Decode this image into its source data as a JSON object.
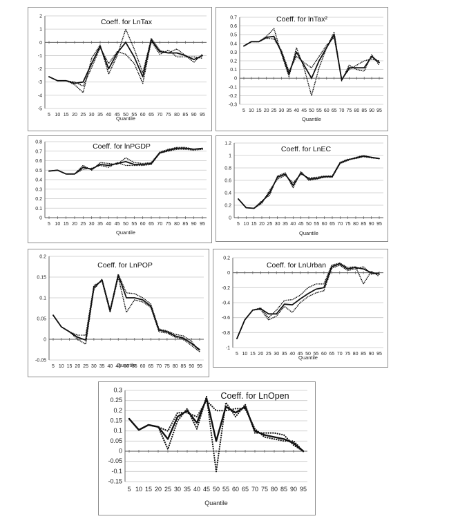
{
  "figure": {
    "panels": [
      {
        "id": "lntax",
        "title": "Coeff. for LnTax",
        "xlabel": "Quantile",
        "chart_data": {
          "type": "line",
          "x": [
            5,
            10,
            15,
            20,
            25,
            30,
            35,
            40,
            45,
            50,
            55,
            60,
            65,
            70,
            75,
            80,
            85,
            90,
            95
          ],
          "x_ticks": [
            "5",
            "10",
            "15",
            "20",
            "25",
            "30",
            "35",
            "40",
            "45",
            "50",
            "55",
            "60",
            "65",
            "70",
            "75",
            "80",
            "85",
            "90",
            "95"
          ],
          "ylim": [
            -5,
            2
          ],
          "y_ticks": [
            -5,
            -4,
            -3,
            -2,
            -1,
            0,
            1,
            2
          ],
          "series": [
            {
              "style": "solid",
              "values": [
                -2.6,
                -2.9,
                -2.9,
                -3.1,
                -3.0,
                -1.6,
                -0.3,
                -2.0,
                -0.8,
                0.0,
                -1.1,
                -2.6,
                0.2,
                -0.7,
                -0.8,
                -0.8,
                -1.0,
                -1.3,
                -1.0
              ]
            },
            {
              "style": "dotted",
              "values": [
                -2.6,
                -2.9,
                -2.9,
                -3.2,
                -3.8,
                -1.2,
                -0.2,
                -2.4,
                -1.0,
                1.0,
                -0.5,
                -2.3,
                0.3,
                -0.6,
                -0.8,
                -0.5,
                -1.0,
                -1.5,
                -0.9
              ]
            },
            {
              "style": "dotted",
              "values": [
                -2.6,
                -2.9,
                -2.9,
                -3.0,
                -3.3,
                -1.9,
                -0.4,
                -1.6,
                -0.7,
                -0.9,
                -1.6,
                -3.1,
                0.1,
                -0.9,
                -0.6,
                -1.1,
                -1.1,
                -1.1,
                -1.2
              ]
            }
          ]
        }
      },
      {
        "id": "lntax2",
        "title": "Coeff. for lnTax²",
        "xlabel": "Quantile",
        "chart_data": {
          "type": "line",
          "x": [
            5,
            10,
            15,
            20,
            25,
            30,
            35,
            40,
            45,
            50,
            55,
            60,
            65,
            70,
            75,
            80,
            85,
            90,
            95
          ],
          "x_ticks": [
            "5",
            "10",
            "15",
            "20",
            "25",
            "30",
            "35",
            "40",
            "45",
            "50",
            "55",
            "60",
            "65",
            "70",
            "75",
            "80",
            "85",
            "90",
            "95"
          ],
          "ylim": [
            -0.3,
            0.7
          ],
          "y_ticks": [
            -0.3,
            -0.2,
            -0.1,
            0,
            0.1,
            0.2,
            0.3,
            0.4,
            0.5,
            0.6,
            0.7
          ],
          "series": [
            {
              "style": "solid",
              "values": [
                0.37,
                0.42,
                0.42,
                0.47,
                0.48,
                0.3,
                0.05,
                0.3,
                0.15,
                0.0,
                0.2,
                0.35,
                0.5,
                -0.02,
                0.12,
                0.12,
                0.12,
                0.25,
                0.18
              ]
            },
            {
              "style": "dotted",
              "values": [
                0.37,
                0.42,
                0.42,
                0.48,
                0.57,
                0.28,
                0.02,
                0.35,
                0.12,
                -0.2,
                0.12,
                0.35,
                0.53,
                -0.03,
                0.15,
                0.1,
                0.08,
                0.27,
                0.15
              ]
            },
            {
              "style": "dotted",
              "values": [
                0.37,
                0.42,
                0.42,
                0.46,
                0.45,
                0.32,
                0.08,
                0.25,
                0.18,
                0.12,
                0.25,
                0.38,
                0.47,
                -0.01,
                0.1,
                0.15,
                0.2,
                0.22,
                0.2
              ]
            }
          ]
        }
      },
      {
        "id": "lnpgdp",
        "title": "Coeff. for lnPGDP",
        "xlabel": "Quantile",
        "chart_data": {
          "type": "line",
          "x": [
            5,
            10,
            15,
            20,
            25,
            30,
            35,
            40,
            45,
            50,
            55,
            60,
            65,
            70,
            75,
            80,
            85,
            90,
            95
          ],
          "x_ticks": [
            "5",
            "10",
            "15",
            "20",
            "25",
            "30",
            "35",
            "40",
            "45",
            "50",
            "55",
            "60",
            "65",
            "70",
            "75",
            "80",
            "85",
            "90",
            "95"
          ],
          "ylim": [
            0,
            0.8
          ],
          "y_ticks": [
            0,
            0.1,
            0.2,
            0.3,
            0.4,
            0.5,
            0.6,
            0.7,
            0.8
          ],
          "series": [
            {
              "style": "solid",
              "values": [
                0.49,
                0.5,
                0.46,
                0.46,
                0.53,
                0.51,
                0.56,
                0.55,
                0.57,
                0.59,
                0.56,
                0.56,
                0.57,
                0.68,
                0.71,
                0.73,
                0.73,
                0.72,
                0.73
              ]
            },
            {
              "style": "dotted",
              "values": [
                0.49,
                0.5,
                0.46,
                0.46,
                0.55,
                0.5,
                0.58,
                0.57,
                0.56,
                0.63,
                0.58,
                0.57,
                0.58,
                0.69,
                0.72,
                0.74,
                0.74,
                0.72,
                0.73
              ]
            },
            {
              "style": "dotted",
              "values": [
                0.49,
                0.5,
                0.46,
                0.46,
                0.51,
                0.52,
                0.55,
                0.53,
                0.58,
                0.55,
                0.55,
                0.55,
                0.56,
                0.68,
                0.7,
                0.72,
                0.72,
                0.71,
                0.72
              ]
            }
          ]
        }
      },
      {
        "id": "lnec",
        "title": "Coeff. for LnEC",
        "xlabel": "Quantile",
        "chart_data": {
          "type": "line",
          "x": [
            5,
            10,
            15,
            20,
            25,
            30,
            35,
            40,
            45,
            50,
            55,
            60,
            65,
            70,
            75,
            80,
            85,
            90,
            95
          ],
          "x_ticks": [
            "5",
            "10",
            "15",
            "20",
            "25",
            "30",
            "35",
            "40",
            "45",
            "50",
            "55",
            "60",
            "65",
            "70",
            "75",
            "80",
            "85",
            "90",
            "95"
          ],
          "ylim": [
            0,
            1.2
          ],
          "y_ticks": [
            0,
            0.2,
            0.4,
            0.6,
            0.8,
            1,
            1.2
          ],
          "series": [
            {
              "style": "solid",
              "values": [
                0.3,
                0.16,
                0.15,
                0.25,
                0.4,
                0.65,
                0.7,
                0.52,
                0.72,
                0.62,
                0.63,
                0.66,
                0.66,
                0.88,
                0.93,
                0.96,
                0.99,
                0.97,
                0.95
              ]
            },
            {
              "style": "dotted",
              "values": [
                0.3,
                0.16,
                0.15,
                0.27,
                0.36,
                0.67,
                0.72,
                0.48,
                0.74,
                0.6,
                0.62,
                0.65,
                0.65,
                0.87,
                0.92,
                0.97,
                1.0,
                0.97,
                0.95
              ]
            },
            {
              "style": "dotted",
              "values": [
                0.3,
                0.16,
                0.15,
                0.23,
                0.44,
                0.62,
                0.68,
                0.56,
                0.7,
                0.64,
                0.65,
                0.67,
                0.67,
                0.89,
                0.94,
                0.95,
                0.98,
                0.96,
                0.95
              ]
            }
          ]
        }
      },
      {
        "id": "lnpop",
        "title": "Coeff. for LnPOP",
        "xlabel": "Quantile",
        "chart_data": {
          "type": "line",
          "x": [
            5,
            10,
            15,
            20,
            25,
            30,
            35,
            40,
            45,
            50,
            55,
            60,
            65,
            70,
            75,
            80,
            85,
            90,
            95
          ],
          "x_ticks": [
            "5",
            "10",
            "15",
            "20",
            "25",
            "30",
            "35",
            "40",
            "45",
            "50",
            "55",
            "60",
            "65",
            "70",
            "75",
            "80",
            "85",
            "90",
            "95"
          ],
          "ylim": [
            -0.05,
            0.2
          ],
          "y_ticks": [
            -0.05,
            0,
            0.05,
            0.1,
            0.15,
            0.2
          ],
          "series": [
            {
              "style": "solid",
              "values": [
                0.058,
                0.03,
                0.018,
                0.005,
                -0.002,
                0.125,
                0.143,
                0.068,
                0.155,
                0.1,
                0.1,
                0.095,
                0.08,
                0.022,
                0.018,
                0.008,
                0.003,
                -0.01,
                -0.025
              ]
            },
            {
              "style": "dotted",
              "values": [
                0.058,
                0.03,
                0.018,
                0.0,
                -0.012,
                0.12,
                0.145,
                0.072,
                0.157,
                0.112,
                0.11,
                0.1,
                0.085,
                0.025,
                0.02,
                0.012,
                0.008,
                -0.005,
                -0.03
              ]
            },
            {
              "style": "dotted",
              "values": [
                0.058,
                0.03,
                0.018,
                0.01,
                0.01,
                0.13,
                0.14,
                0.065,
                0.15,
                0.065,
                0.095,
                0.09,
                0.077,
                0.018,
                0.015,
                0.005,
                0.0,
                -0.015,
                -0.03
              ]
            }
          ]
        }
      },
      {
        "id": "lnurban",
        "title": "Coeff. for LnUrban",
        "xlabel": "Quantile",
        "chart_data": {
          "type": "line",
          "x": [
            5,
            10,
            15,
            20,
            25,
            30,
            35,
            40,
            45,
            50,
            55,
            60,
            65,
            70,
            75,
            80,
            85,
            90,
            95
          ],
          "x_ticks": [
            "5",
            "10",
            "15",
            "20",
            "25",
            "30",
            "35",
            "40",
            "45",
            "50",
            "55",
            "60",
            "65",
            "70",
            "75",
            "80",
            "85",
            "90",
            "95"
          ],
          "ylim": [
            -1,
            0.2
          ],
          "y_ticks": [
            -1,
            -0.8,
            -0.6,
            -0.4,
            -0.2,
            0,
            0.2
          ],
          "series": [
            {
              "style": "solid",
              "values": [
                -0.88,
                -0.63,
                -0.5,
                -0.48,
                -0.55,
                -0.55,
                -0.42,
                -0.43,
                -0.35,
                -0.28,
                -0.22,
                -0.2,
                0.08,
                0.12,
                0.05,
                0.07,
                0.05,
                0.0,
                -0.02
              ]
            },
            {
              "style": "dotted",
              "values": [
                -0.88,
                -0.63,
                -0.5,
                -0.47,
                -0.6,
                -0.5,
                -0.37,
                -0.36,
                -0.3,
                -0.2,
                -0.15,
                -0.15,
                0.1,
                0.13,
                0.07,
                0.08,
                -0.15,
                0.02,
                -0.05
              ]
            },
            {
              "style": "dotted",
              "values": [
                -0.88,
                -0.63,
                -0.5,
                -0.49,
                -0.63,
                -0.58,
                -0.45,
                -0.53,
                -0.4,
                -0.32,
                -0.27,
                -0.24,
                0.06,
                0.1,
                0.03,
                0.05,
                0.08,
                -0.02,
                0.0
              ]
            }
          ]
        }
      },
      {
        "id": "lnopen",
        "title": "Coeff. for LnOpen",
        "xlabel": "Quantile",
        "chart_data": {
          "type": "line",
          "x": [
            5,
            10,
            15,
            20,
            25,
            30,
            35,
            40,
            45,
            50,
            55,
            60,
            65,
            70,
            75,
            80,
            85,
            90,
            95
          ],
          "x_ticks": [
            "5",
            "10",
            "15",
            "20",
            "25",
            "30",
            "35",
            "40",
            "45",
            "50",
            "55",
            "60",
            "65",
            "70",
            "75",
            "80",
            "85",
            "90",
            "95"
          ],
          "ylim": [
            -0.15,
            0.3
          ],
          "y_ticks": [
            -0.15,
            -0.1,
            -0.05,
            0,
            0.05,
            0.1,
            0.15,
            0.2,
            0.25,
            0.3
          ],
          "series": [
            {
              "style": "solid",
              "values": [
                0.16,
                0.105,
                0.13,
                0.12,
                0.06,
                0.17,
                0.2,
                0.14,
                0.26,
                0.05,
                0.22,
                0.19,
                0.22,
                0.1,
                0.08,
                0.07,
                0.06,
                0.04,
                0.0
              ]
            },
            {
              "style": "dotted",
              "values": [
                0.16,
                0.105,
                0.13,
                0.12,
                0.01,
                0.15,
                0.21,
                0.11,
                0.27,
                -0.1,
                0.24,
                0.17,
                0.23,
                0.09,
                0.09,
                0.09,
                0.08,
                0.03,
                0.0
              ]
            },
            {
              "style": "dotted",
              "values": [
                0.16,
                0.105,
                0.13,
                0.12,
                0.1,
                0.19,
                0.19,
                0.17,
                0.25,
                0.2,
                0.2,
                0.21,
                0.21,
                0.11,
                0.07,
                0.06,
                0.05,
                0.05,
                0.0
              ]
            }
          ]
        }
      }
    ]
  }
}
